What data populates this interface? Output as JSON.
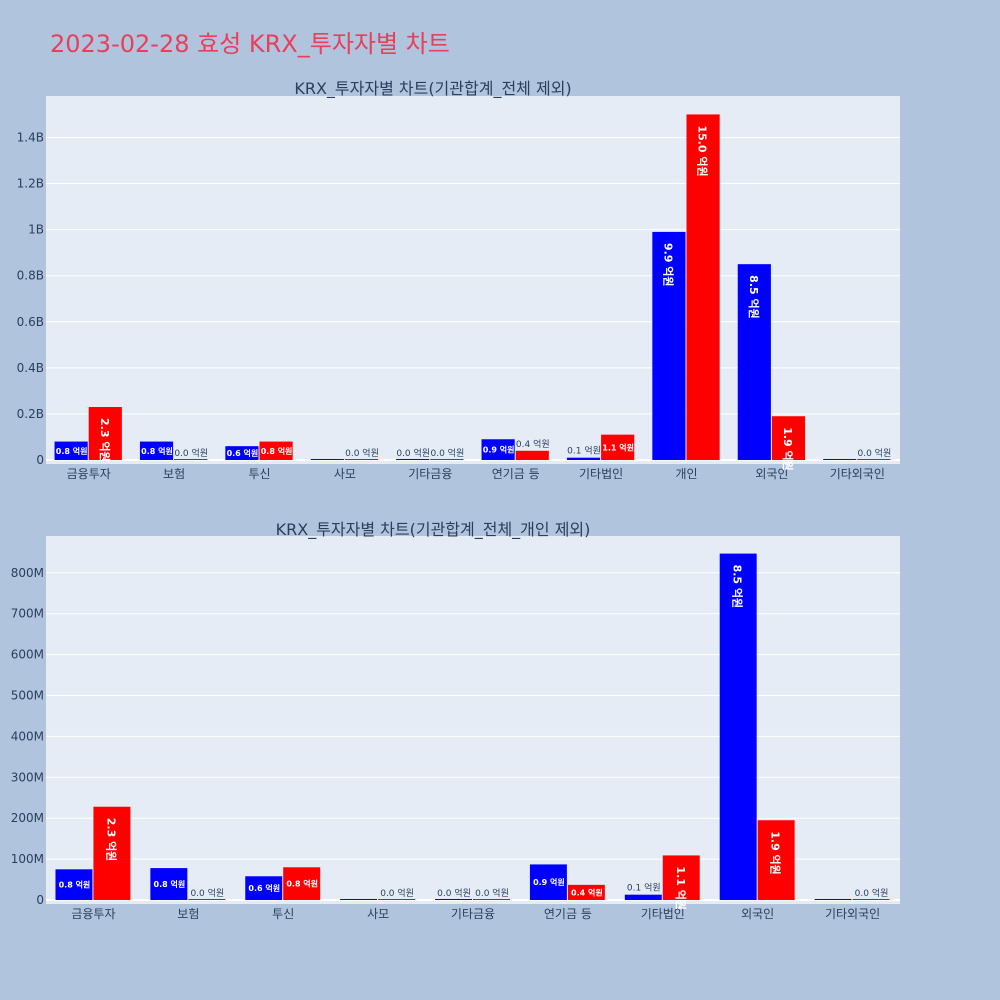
{
  "page_title": "2023-02-28 효성 KRX_투자자별 차트",
  "colors": {
    "buy": "#0000ff",
    "sell": "#ff0000",
    "plot_bg": "#e5ecf6",
    "page_bg": "#b0c4de",
    "title": "#e8405a"
  },
  "chart_data": [
    {
      "type": "bar",
      "title": "KRX_투자자별 차트(기관합계_전체 제외)",
      "categories": [
        "금융투자",
        "보험",
        "투신",
        "사모",
        "기타금융",
        "연기금 등",
        "기타법인",
        "개인",
        "외국인",
        "기타외국인"
      ],
      "series": [
        {
          "color": "#0000ff",
          "values": [
            80000000,
            80000000,
            60000000,
            0,
            0,
            90000000,
            10000000,
            990000000,
            850000000,
            0
          ],
          "labels": [
            "0.8 억원",
            "0.8 억원",
            "0.6 억원",
            "",
            "0.0 억원",
            "0.9 억원",
            "0.1 억원",
            "9.9 억원",
            "8.5 억원",
            ""
          ]
        },
        {
          "color": "#ff0000",
          "values": [
            230000000,
            0,
            80000000,
            0,
            0,
            40000000,
            110000000,
            1500000000,
            190000000,
            0
          ],
          "labels": [
            "2.3 억원",
            "0.0 억원",
            "0.8 억원",
            "0.0 억원",
            "0.0 억원",
            "0.4 억원",
            "1.1 억원",
            "15.0 억원",
            "1.9 억원",
            "0.0 억원"
          ]
        }
      ],
      "yticks": [
        0,
        200000000,
        400000000,
        600000000,
        800000000,
        1000000000,
        1200000000,
        1400000000
      ],
      "ytick_labels": [
        "0",
        "0.2B",
        "0.4B",
        "0.6B",
        "0.8B",
        "1B",
        "1.2B",
        "1.4B"
      ],
      "ylim": [
        0,
        1580000000
      ],
      "grid": true,
      "legend": "none"
    },
    {
      "type": "bar",
      "title": "KRX_투자자별 차트(기관합계_전체_개인 제외)",
      "categories": [
        "금융투자",
        "보험",
        "투신",
        "사모",
        "기타금융",
        "연기금 등",
        "기타법인",
        "외국인",
        "기타외국인"
      ],
      "series": [
        {
          "color": "#0000ff",
          "values": [
            75000000,
            78000000,
            58000000,
            0,
            0,
            87000000,
            13000000,
            847000000,
            0
          ],
          "labels": [
            "0.8 억원",
            "0.8 억원",
            "0.6 억원",
            "",
            "0.0 억원",
            "0.9 억원",
            "0.1 억원",
            "8.5 억원",
            ""
          ]
        },
        {
          "color": "#ff0000",
          "values": [
            228000000,
            0,
            80000000,
            0,
            0,
            37000000,
            109000000,
            195000000,
            0
          ],
          "labels": [
            "2.3 억원",
            "0.0 억원",
            "0.8 억원",
            "0.0 억원",
            "0.0 억원",
            "0.4 억원",
            "1.1 억원",
            "1.9 억원",
            "0.0 억원"
          ]
        }
      ],
      "yticks": [
        0,
        100000000,
        200000000,
        300000000,
        400000000,
        500000000,
        600000000,
        700000000,
        800000000
      ],
      "ytick_labels": [
        "0",
        "100M",
        "200M",
        "300M",
        "400M",
        "500M",
        "600M",
        "700M",
        "800M"
      ],
      "ylim": [
        0,
        890000000
      ],
      "grid": true,
      "legend": "none"
    }
  ]
}
